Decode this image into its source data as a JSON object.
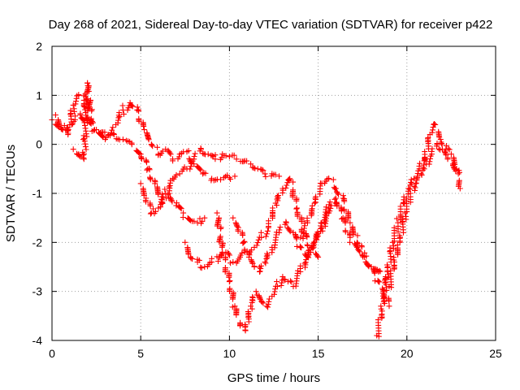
{
  "chart_data": {
    "type": "scatter",
    "title": "Day 268 of 2021, Sidereal Day-to-day VTEC variation (SDTVAR) for receiver p422",
    "xlabel": "GPS time / hours",
    "ylabel": "SDTVAR / TECUs",
    "xlim": [
      0,
      25
    ],
    "ylim": [
      -4,
      2
    ],
    "xticks": [
      0,
      5,
      10,
      15,
      20,
      25
    ],
    "yticks": [
      -4,
      -3,
      -2,
      -1,
      0,
      1,
      2
    ],
    "xtick_labels": [
      "0",
      "5",
      "10",
      "15",
      "20",
      "25"
    ],
    "ytick_labels": [
      "-4",
      "-3",
      "-2",
      "-1",
      "0",
      "1",
      "2"
    ],
    "grid": true,
    "marker": "+",
    "series": [
      {
        "name": "SDTVAR",
        "color": "#ff0000",
        "x": [
          0,
          0.3,
          0.6,
          1.0,
          1.3,
          1.6,
          2.0,
          2.4,
          2.8,
          3.2,
          3.6,
          4.0,
          4.4,
          4.8,
          5.2,
          5.6,
          6.0,
          6.4,
          6.8,
          7.2,
          7.6,
          8.0,
          8.5,
          9.0,
          9.5,
          10.0,
          10.3
        ],
        "y": [
          0.5,
          0.4,
          0.3,
          0.4,
          0.5,
          0.6,
          0.45,
          0.3,
          0.25,
          0.2,
          0.4,
          0.7,
          0.85,
          0.7,
          0.3,
          0.0,
          -0.2,
          -0.1,
          -0.3,
          -0.2,
          -0.15,
          -0.4,
          -0.6,
          -0.7,
          -0.72,
          -0.68,
          -0.65
        ]
      },
      {
        "name": "SDTVAR",
        "color": "#ff0000",
        "x": [
          0.2,
          0.5,
          0.9,
          1.2,
          1.5,
          1.8,
          2.1,
          2.5,
          3.0,
          3.5,
          4.0,
          4.5,
          5.0,
          5.4,
          5.8,
          6.2,
          6.6,
          7.0,
          7.4,
          7.8,
          8.2,
          8.6
        ],
        "y": [
          0.6,
          0.35,
          0.2,
          0.8,
          1.0,
          0.9,
          0.5,
          0.3,
          0.1,
          0.2,
          0.1,
          0.0,
          -0.2,
          -0.5,
          -0.8,
          -1.2,
          -1.0,
          -1.25,
          -1.4,
          -1.55,
          -1.6,
          -1.5
        ]
      },
      {
        "name": "SDTVAR",
        "color": "#ff0000",
        "x": [
          1.2,
          1.5,
          1.8,
          2.0,
          2.2
        ],
        "y": [
          -0.1,
          -0.2,
          -0.3,
          1.25,
          0.5
        ]
      },
      {
        "name": "SDTVAR",
        "color": "#ff0000",
        "x": [
          5.0,
          5.3,
          5.6,
          6.0,
          6.4,
          6.8,
          7.2,
          7.6,
          8.0,
          8.4,
          8.8,
          9.2,
          9.6,
          10.0,
          10.4,
          10.8,
          11.2,
          11.6,
          12.0,
          12.4,
          12.8
        ],
        "y": [
          -0.8,
          -1.1,
          -1.4,
          -1.3,
          -1.0,
          -0.7,
          -0.6,
          -0.5,
          -0.3,
          -0.1,
          -0.2,
          -0.3,
          -0.2,
          -0.25,
          -0.3,
          -0.35,
          -0.4,
          -0.5,
          -0.6,
          -0.6,
          -0.65
        ]
      },
      {
        "name": "SDTVAR",
        "color": "#ff0000",
        "x": [
          7.5,
          7.8,
          8.2,
          8.6,
          9.0,
          9.4,
          9.8,
          10.2,
          10.6,
          11.0,
          11.4,
          11.8,
          12.2,
          12.6,
          13.0,
          13.4,
          13.8,
          14.2,
          14.6,
          15.0
        ],
        "y": [
          -2.0,
          -2.3,
          -2.4,
          -2.5,
          -2.4,
          -2.3,
          -2.2,
          -2.4,
          -2.3,
          -2.2,
          -2.1,
          -1.9,
          -1.7,
          -1.2,
          -0.9,
          -0.7,
          -1.3,
          -1.8,
          -2.1,
          -2.3
        ]
      },
      {
        "name": "SDTVAR",
        "color": "#ff0000",
        "x": [
          9.3,
          9.6,
          10.0,
          10.3,
          10.6,
          10.9,
          11.2,
          11.5,
          11.8,
          12.1,
          12.4,
          12.7,
          13.0,
          13.3,
          13.6,
          14.0,
          14.4,
          14.8,
          15.2,
          15.6,
          16.0
        ],
        "y": [
          -1.4,
          -2.2,
          -2.8,
          -3.3,
          -3.7,
          -3.8,
          -3.3,
          -3.0,
          -3.2,
          -3.3,
          -3.1,
          -2.9,
          -2.7,
          -2.8,
          -2.9,
          -2.6,
          -2.3,
          -2.0,
          -1.7,
          -1.4,
          -1.2
        ]
      },
      {
        "name": "SDTVAR",
        "color": "#ff0000",
        "x": [
          10.2,
          10.5,
          10.8,
          11.1,
          11.4,
          11.7,
          12.0,
          12.4,
          12.8,
          13.2,
          13.6,
          14.0,
          14.4,
          14.8,
          15.2,
          15.6,
          16.0,
          16.4,
          16.8,
          17.2,
          17.6,
          18.0,
          18.4,
          18.8
        ],
        "y": [
          -1.5,
          -1.7,
          -2.0,
          -2.3,
          -2.5,
          -2.6,
          -2.4,
          -2.1,
          -1.8,
          -1.6,
          -1.8,
          -2.1,
          -2.3,
          -2.0,
          -1.6,
          -1.3,
          -1.1,
          -1.5,
          -1.9,
          -2.1,
          -2.3,
          -2.5,
          -2.6,
          -2.7
        ]
      },
      {
        "name": "SDTVAR",
        "color": "#ff0000",
        "x": [
          14.0,
          14.4,
          14.8,
          15.2,
          15.6,
          16.0,
          16.4,
          16.8,
          17.2,
          17.6,
          18.0,
          18.4,
          18.7,
          19.0
        ],
        "y": [
          -1.9,
          -1.6,
          -1.2,
          -0.8,
          -0.7,
          -0.9,
          -1.1,
          -1.6,
          -2.0,
          -2.3,
          -2.5,
          -2.8,
          -3.0,
          -3.3
        ]
      },
      {
        "name": "SDTVAR",
        "color": "#ff0000",
        "x": [
          18.3,
          18.6,
          18.9,
          19.2,
          19.5,
          19.8,
          20.1,
          20.4,
          20.7,
          21.0,
          21.3,
          21.6,
          21.9,
          22.2,
          22.5,
          22.8,
          23.0
        ],
        "y": [
          -3.9,
          -3.4,
          -2.6,
          -2.0,
          -1.6,
          -1.2,
          -0.9,
          -0.7,
          -0.5,
          -0.3,
          0.2,
          0.4,
          0.1,
          -0.1,
          -0.2,
          -0.5,
          -0.9
        ]
      },
      {
        "name": "SDTVAR",
        "color": "#ff0000",
        "x": [
          19.0,
          19.3,
          19.6,
          19.9,
          20.2,
          20.5,
          20.8,
          21.1,
          21.4,
          21.7,
          22.0,
          22.3,
          22.6,
          22.9
        ],
        "y": [
          -2.9,
          -2.4,
          -2.0,
          -1.4,
          -1.0,
          -0.8,
          -0.6,
          -0.4,
          -0.2,
          0.0,
          -0.1,
          -0.3,
          -0.4,
          -0.6
        ]
      }
    ]
  }
}
